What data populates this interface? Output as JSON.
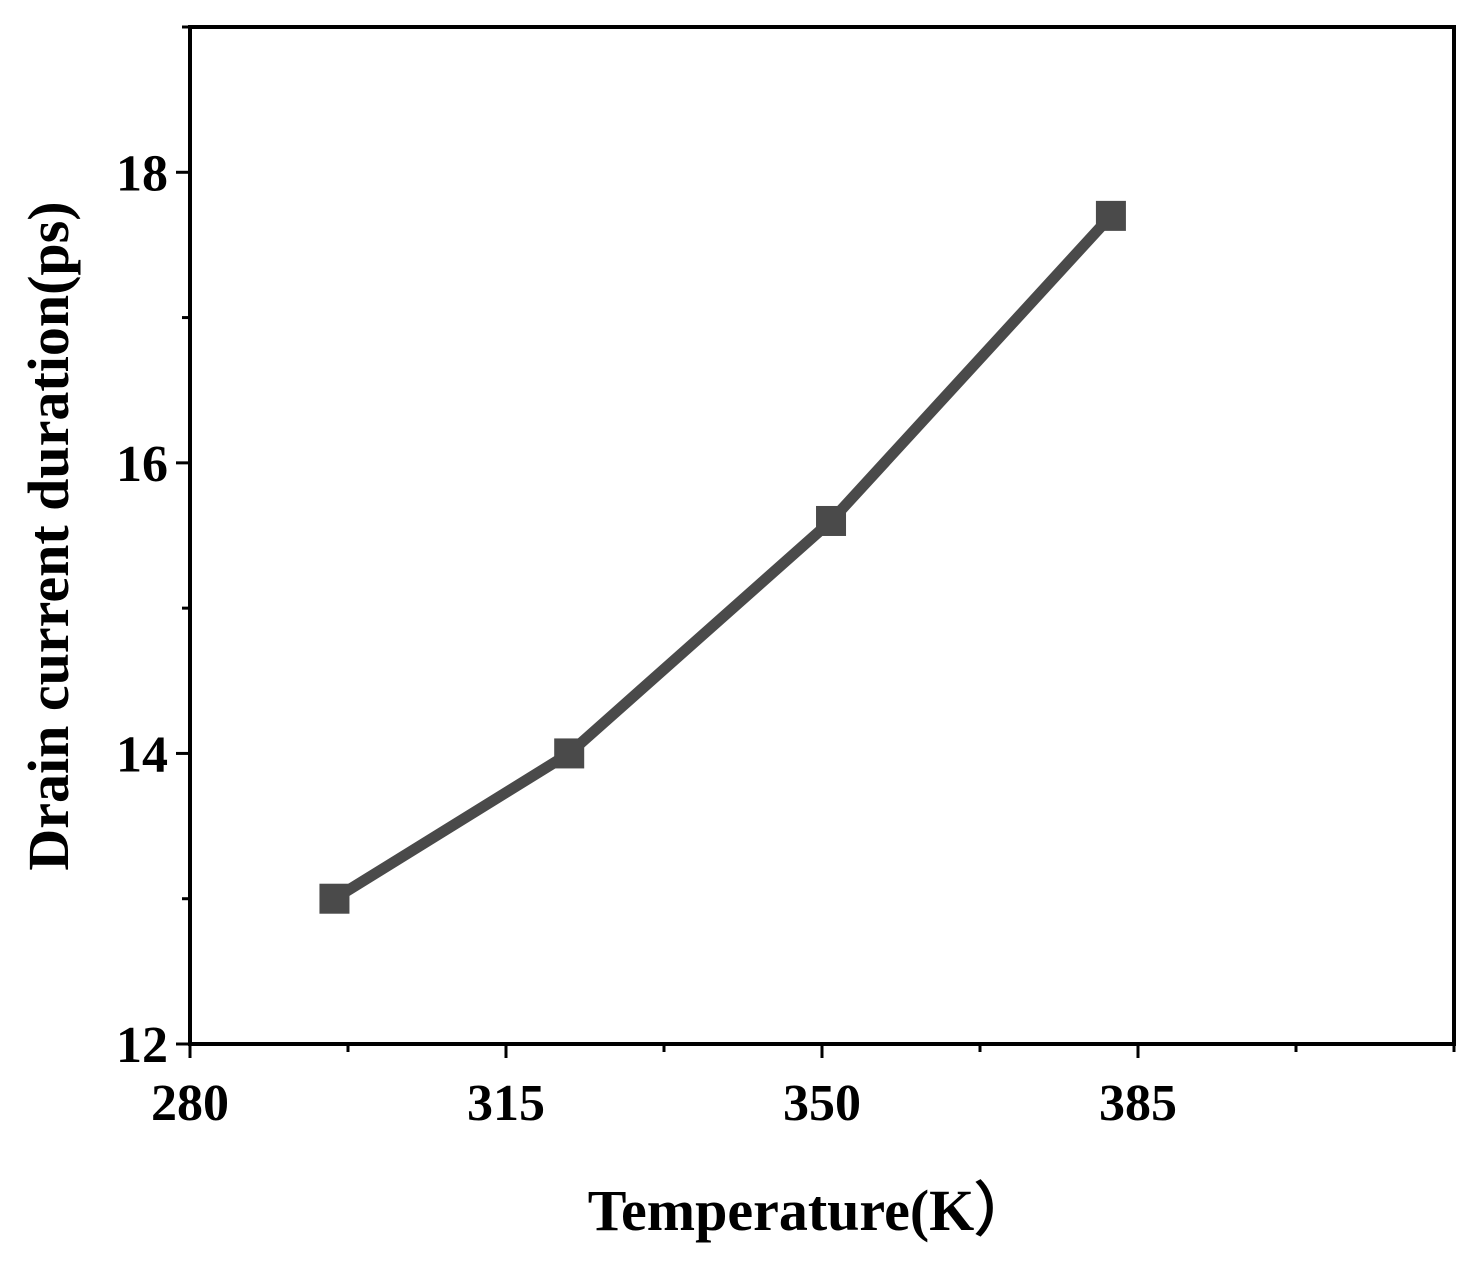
{
  "chart_data": {
    "type": "line",
    "title": "",
    "xlabel": "Temperature(K）",
    "ylabel": "Drain current duration(ps)",
    "xlim": [
      280,
      420
    ],
    "ylim": [
      12,
      19
    ],
    "x_major_ticks": [
      280,
      315,
      350,
      385
    ],
    "x_tick_labels": [
      "280",
      "315",
      "350",
      "385"
    ],
    "x_minor_ticks": [
      297.5,
      332.5,
      367.5,
      402.5,
      420
    ],
    "y_major_ticks": [
      12,
      14,
      16,
      18
    ],
    "y_tick_labels": [
      "12",
      "14",
      "16",
      "18"
    ],
    "y_minor_ticks": [
      13,
      15,
      17,
      19
    ],
    "grid": false,
    "legend": "none",
    "series": [
      {
        "x": [
          296,
          322,
          351,
          382
        ],
        "y": [
          13.0,
          14.0,
          15.6,
          17.7
        ],
        "color": "#4a4a4a",
        "marker": "square"
      }
    ]
  }
}
